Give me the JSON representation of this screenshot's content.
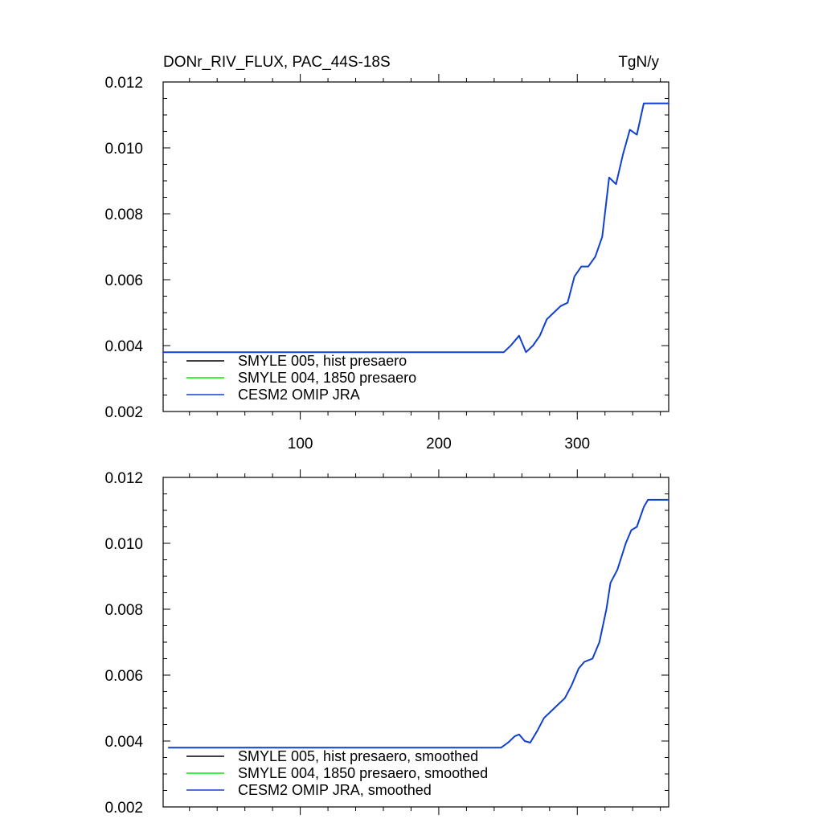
{
  "chart_data": [
    {
      "type": "line",
      "title": "DONr_RIV_FLUX, PAC_44S-18S",
      "units": "TgN/y",
      "xlim": [
        1,
        366
      ],
      "ylim": [
        0.002,
        0.012
      ],
      "yticks": [
        "0.002",
        "0.004",
        "0.006",
        "0.008",
        "0.010",
        "0.012"
      ],
      "xticks": [
        "100",
        "200",
        "300"
      ],
      "legend_placement": "bottom-left",
      "series": [
        {
          "name": "SMYLE 005, hist presaero",
          "color": "#000000",
          "x": [],
          "y": []
        },
        {
          "name": "SMYLE 004, 1850 presaero",
          "color": "#00ee00",
          "x": [],
          "y": []
        },
        {
          "name": "CESM2 OMIP JRA",
          "color": "#1040d0",
          "x": [
            1,
            247,
            252,
            258,
            263,
            268,
            273,
            278,
            283,
            288,
            293,
            298,
            303,
            308,
            313,
            318,
            323,
            328,
            333,
            338,
            343,
            348,
            366
          ],
          "y": [
            0.0038,
            0.0038,
            0.004,
            0.0043,
            0.0038,
            0.004,
            0.0043,
            0.0048,
            0.005,
            0.0052,
            0.0053,
            0.0061,
            0.0064,
            0.0064,
            0.0067,
            0.0073,
            0.0091,
            0.0089,
            0.0098,
            0.01055,
            0.0104,
            0.01135,
            0.01135
          ]
        }
      ]
    },
    {
      "type": "line",
      "title": "",
      "xlim": [
        1,
        366
      ],
      "ylim": [
        0.002,
        0.012
      ],
      "yticks": [
        "0.002",
        "0.004",
        "0.006",
        "0.008",
        "0.010",
        "0.012"
      ],
      "xticks": [],
      "legend_placement": "bottom-left",
      "series": [
        {
          "name": "SMYLE 005, hist presaero, smoothed",
          "color": "#000000",
          "x": [],
          "y": []
        },
        {
          "name": "SMYLE 004, 1850 presaero, smoothed",
          "color": "#00ee00",
          "x": [],
          "y": []
        },
        {
          "name": "CESM2 OMIP JRA, smoothed",
          "color": "#1040d0",
          "x": [
            5,
            245,
            250,
            255,
            258,
            262,
            266,
            271,
            276,
            281,
            286,
            291,
            296,
            301,
            305,
            311,
            316,
            321,
            324,
            329,
            335,
            339,
            343,
            348,
            351,
            366
          ],
          "y": [
            0.0038,
            0.0038,
            0.00395,
            0.00415,
            0.0042,
            0.004,
            0.00395,
            0.0043,
            0.0047,
            0.0049,
            0.0051,
            0.0053,
            0.0057,
            0.0062,
            0.0064,
            0.0065,
            0.007,
            0.008,
            0.0088,
            0.0092,
            0.01,
            0.0104,
            0.0105,
            0.0111,
            0.01132,
            0.01132
          ]
        }
      ]
    }
  ]
}
